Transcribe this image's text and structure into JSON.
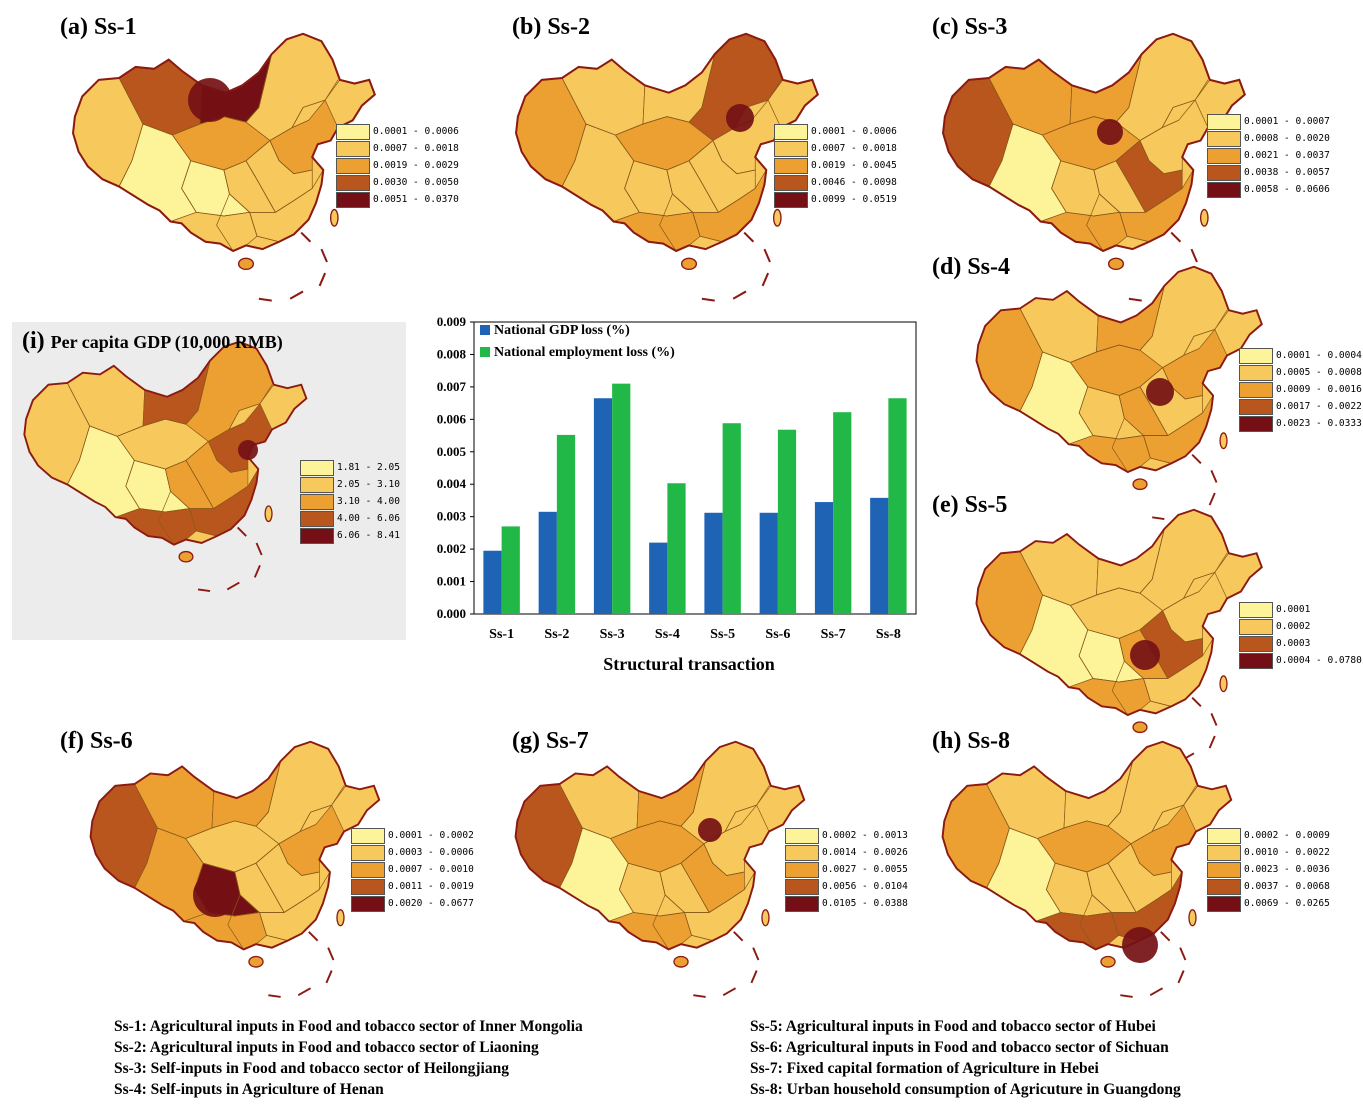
{
  "colors": [
    "#fdf49a",
    "#f7c95c",
    "#eda032",
    "#b9561d",
    "#741015"
  ],
  "map_outline_color": "#8b1a12",
  "panels": [
    {
      "id": "a",
      "title": "(a) Ss-1",
      "legend": [
        "0.0001 - 0.0006",
        "0.0007 - 0.0018",
        "0.0019 - 0.0029",
        "0.0030 - 0.0050",
        "0.0051 - 0.0370"
      ]
    },
    {
      "id": "b",
      "title": "(b) Ss-2",
      "legend": [
        "0.0001 - 0.0006",
        "0.0007 - 0.0018",
        "0.0019 - 0.0045",
        "0.0046 - 0.0098",
        "0.0099 - 0.0519"
      ]
    },
    {
      "id": "c",
      "title": "(c) Ss-3",
      "legend": [
        "0.0001 - 0.0007",
        "0.0008 - 0.0020",
        "0.0021 - 0.0037",
        "0.0038 - 0.0057",
        "0.0058 - 0.0606"
      ]
    },
    {
      "id": "d",
      "title": "(d) Ss-4",
      "legend": [
        "0.0001 - 0.0004",
        "0.0005 - 0.0008",
        "0.0009 - 0.0016",
        "0.0017 - 0.0022",
        "0.0023 - 0.0333"
      ]
    },
    {
      "id": "e",
      "title": "(e) Ss-5",
      "legend": [
        "0.0001",
        "0.0002",
        "0.0003",
        "0.0004 - 0.0780"
      ]
    },
    {
      "id": "f",
      "title": "(f) Ss-6",
      "legend": [
        "0.0001 - 0.0002",
        "0.0003 - 0.0006",
        "0.0007 - 0.0010",
        "0.0011 - 0.0019",
        "0.0020 - 0.0677"
      ]
    },
    {
      "id": "g",
      "title": "(g) Ss-7",
      "legend": [
        "0.0002 - 0.0013",
        "0.0014 - 0.0026",
        "0.0027 - 0.0055",
        "0.0056 - 0.0104",
        "0.0105 - 0.0388"
      ]
    },
    {
      "id": "h",
      "title": "(h) Ss-8",
      "legend": [
        "0.0002 - 0.0009",
        "0.0010 - 0.0022",
        "0.0023 - 0.0036",
        "0.0037 - 0.0068",
        "0.0069 - 0.0265"
      ]
    },
    {
      "id": "i",
      "title": "(i)",
      "subtitle": "Per capita GDP (10,000 RMB)",
      "legend": [
        "1.81 - 2.05",
        "2.05 - 3.10",
        "3.10 - 4.00",
        "4.00 - 6.06",
        "6.06 - 8.41"
      ]
    }
  ],
  "chart_data": {
    "type": "bar",
    "categories": [
      "Ss-1",
      "Ss-2",
      "Ss-3",
      "Ss-4",
      "Ss-5",
      "Ss-6",
      "Ss-7",
      "Ss-8"
    ],
    "series": [
      {
        "name": "National GDP loss (%)",
        "color": "#1f63b4",
        "values": [
          0.00195,
          0.00315,
          0.00665,
          0.0022,
          0.00312,
          0.00312,
          0.00345,
          0.00358
        ]
      },
      {
        "name": "National employment loss (%)",
        "color": "#22b847",
        "values": [
          0.0027,
          0.00552,
          0.0071,
          0.00403,
          0.00588,
          0.00568,
          0.00622,
          0.00665
        ]
      }
    ],
    "xlabel": "Structural transaction",
    "ylabel": "",
    "ylim": [
      0,
      0.009
    ],
    "yticks": [
      "0.000",
      "0.001",
      "0.002",
      "0.003",
      "0.004",
      "0.005",
      "0.006",
      "0.007",
      "0.008",
      "0.009"
    ],
    "legend_position": "top-left",
    "grid": false
  },
  "notes": {
    "left": [
      "Ss-1: Agricultural inputs in Food and tobacco sector of Inner Mongolia",
      "Ss-2: Agricultural inputs in Food and tobacco sector of Liaoning",
      "Ss-3: Self-inputs in Food and tobacco sector of Heilongjiang",
      "Ss-4: Self-inputs in Agriculture of Henan"
    ],
    "right": [
      "Ss-5: Agricultural inputs in Food and tobacco sector of Hubei",
      "Ss-6: Agricultural inputs in Food and tobacco sector of Sichuan",
      "Ss-7: Fixed capital formation of Agriculture in Hebei",
      "Ss-8: Urban household consumption of Agricuture in Guangdong"
    ]
  }
}
